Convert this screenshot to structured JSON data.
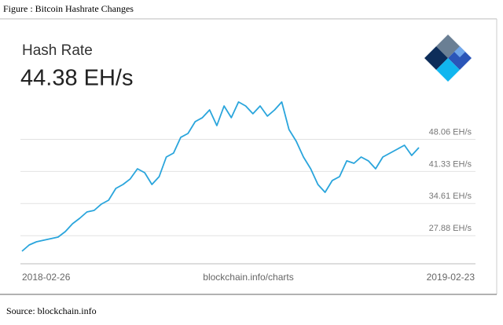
{
  "caption": "Figure : Bitcoin Hashrate Changes",
  "source": "Source: blockchain.info",
  "chart_data": {
    "type": "line",
    "title": "Hash Rate",
    "current_value": "44.38 EH/s",
    "credit": "blockchain.info/charts",
    "categories": [
      "2018-02-26",
      null,
      null,
      null,
      null,
      null,
      null,
      null,
      null,
      null,
      null,
      null,
      null,
      null,
      null,
      null,
      null,
      null,
      null,
      null,
      null,
      null,
      null,
      null,
      null,
      null,
      null,
      null,
      null,
      null,
      null,
      null,
      null,
      null,
      null,
      null,
      null,
      null,
      null,
      null,
      null,
      null,
      null,
      null,
      null,
      null,
      null,
      null,
      null,
      null,
      null,
      null,
      null,
      null,
      null,
      "2019-02-23"
    ],
    "values": [
      24.63,
      25.95,
      26.6,
      26.93,
      27.26,
      27.59,
      28.74,
      30.38,
      31.54,
      32.85,
      33.18,
      34.49,
      35.32,
      37.78,
      38.6,
      39.76,
      41.89,
      41.07,
      38.6,
      40.25,
      44.36,
      45.18,
      48.47,
      49.29,
      51.76,
      52.58,
      54.22,
      50.93,
      55.04,
      52.58,
      55.87,
      55.04,
      53.4,
      55.04,
      52.91,
      54.22,
      55.87,
      50.11,
      47.65,
      44.36,
      41.89,
      38.6,
      36.96,
      39.43,
      40.25,
      43.54,
      43.04,
      44.36,
      43.54,
      41.89,
      44.36,
      45.18,
      46.0,
      46.82,
      44.68,
      46.33
    ],
    "color": "#2aa5dc",
    "ylim": [
      22,
      57.5
    ],
    "yticks": [
      {
        "value": 27.88,
        "label": "27.88 EH/s"
      },
      {
        "value": 34.61,
        "label": "34.61 EH/s"
      },
      {
        "value": 41.33,
        "label": "41.33 EH/s"
      },
      {
        "value": 48.06,
        "label": "48.06 EH/s"
      }
    ],
    "grid": true
  }
}
